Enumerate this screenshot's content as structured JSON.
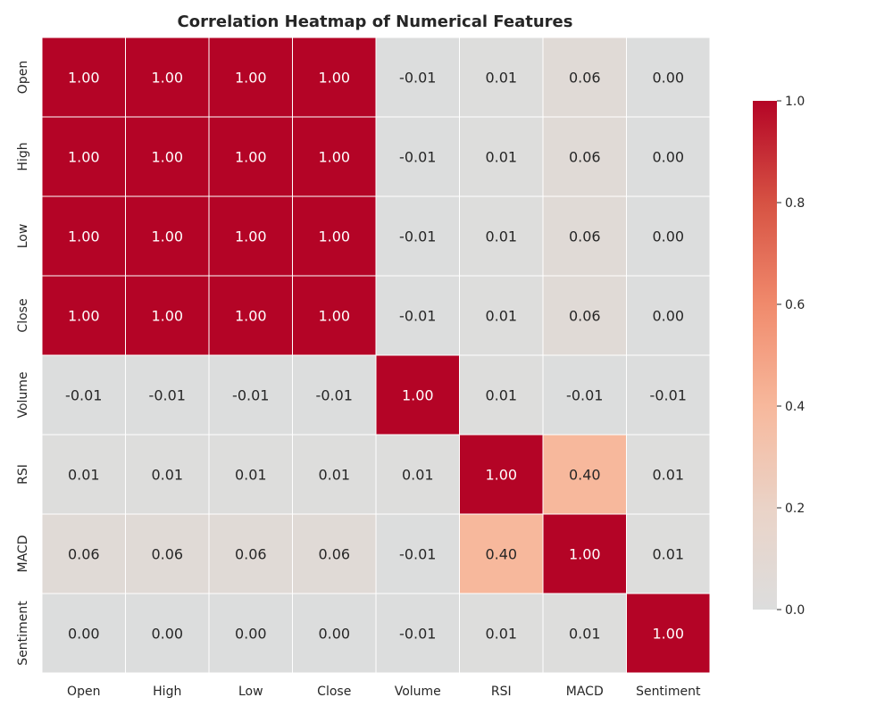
{
  "chart_data": {
    "type": "heatmap",
    "title": "Correlation Heatmap of Numerical Features",
    "xlabel": "",
    "ylabel": "",
    "x_categories": [
      "Open",
      "High",
      "Low",
      "Close",
      "Volume",
      "RSI",
      "MACD",
      "Sentiment"
    ],
    "y_categories": [
      "Open",
      "High",
      "Low",
      "Close",
      "Volume",
      "RSI",
      "MACD",
      "Sentiment"
    ],
    "values": [
      [
        1.0,
        1.0,
        1.0,
        1.0,
        -0.01,
        0.01,
        0.06,
        0.0
      ],
      [
        1.0,
        1.0,
        1.0,
        1.0,
        -0.01,
        0.01,
        0.06,
        0.0
      ],
      [
        1.0,
        1.0,
        1.0,
        1.0,
        -0.01,
        0.01,
        0.06,
        0.0
      ],
      [
        1.0,
        1.0,
        1.0,
        1.0,
        -0.01,
        0.01,
        0.06,
        0.0
      ],
      [
        -0.01,
        -0.01,
        -0.01,
        -0.01,
        1.0,
        0.01,
        -0.01,
        -0.01
      ],
      [
        0.01,
        0.01,
        0.01,
        0.01,
        0.01,
        1.0,
        0.4,
        0.01
      ],
      [
        0.06,
        0.06,
        0.06,
        0.06,
        -0.01,
        0.4,
        1.0,
        0.01
      ],
      [
        0.0,
        0.0,
        0.0,
        0.0,
        -0.01,
        0.01,
        0.01,
        1.0
      ]
    ],
    "value_format": "0.00",
    "colormap": "coolwarm",
    "colorbar": {
      "range": [
        0.0,
        1.0
      ],
      "ticks": [
        "0.0",
        "0.2",
        "0.4",
        "0.6",
        "0.8",
        "1.0"
      ],
      "position": "right"
    },
    "grid": false,
    "colors": {
      "zero": "#dcdddd",
      "low": "#f7b89c",
      "mid": "#f08a6c",
      "high": "#b40426",
      "cell_border": "#ffffff",
      "annotation_dark": "#262626",
      "annotation_light": "#ffffff"
    }
  }
}
